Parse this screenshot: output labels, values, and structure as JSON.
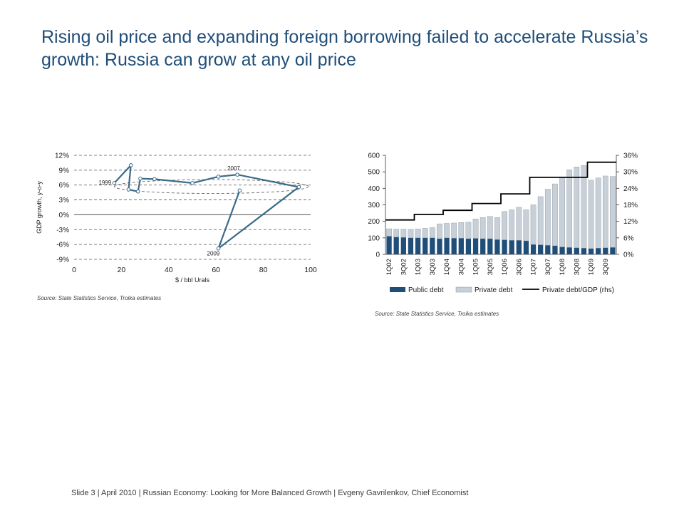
{
  "slide": {
    "title": "Rising oil price and expanding foreign borrowing failed to accelerate Russia’s growth: Russia can grow at any oil price",
    "footer": "Slide 3  | April 2010 | Russian Economy: Looking for More Balanced Growth | Evgeny Gavrilenkov, Chief Economist",
    "title_color": "#1f4e79"
  },
  "chart_data": [
    {
      "type": "scatter",
      "connected": true,
      "xlabel": "$ / bbl Urals",
      "ylabel": "GDP growth, y-o-y",
      "xlim": [
        0,
        100
      ],
      "ylim": [
        -9,
        12
      ],
      "x_ticks": [
        "0",
        "20",
        "40",
        "60",
        "80",
        "100"
      ],
      "y_ticks": [
        "-9%",
        "-6%",
        "-3%",
        "0%",
        "3%",
        "6%",
        "9%",
        "12%"
      ],
      "grid": "horizontal dashed",
      "series": [
        {
          "color": "#3a6b8a",
          "points": [
            {
              "x": 17,
              "y": 6.4
            },
            {
              "x": 24,
              "y": 10.0
            },
            {
              "x": 23,
              "y": 5.1
            },
            {
              "x": 27,
              "y": 4.7
            },
            {
              "x": 28,
              "y": 7.3
            },
            {
              "x": 34,
              "y": 7.2
            },
            {
              "x": 50,
              "y": 6.4
            },
            {
              "x": 61,
              "y": 7.7
            },
            {
              "x": 69,
              "y": 8.1
            },
            {
              "x": 95,
              "y": 5.6
            },
            {
              "x": 61,
              "y": -6.8
            },
            {
              "x": 70,
              "y": 4.9
            }
          ]
        }
      ],
      "annotations": [
        {
          "text": "1999",
          "x": 17,
          "y": 6.4
        },
        {
          "text": "2007",
          "x": 69,
          "y": 8.1
        },
        {
          "text": "2009",
          "x": 61,
          "y": -6.8
        }
      ],
      "ellipse": {
        "cx": 58,
        "cy": 5.7,
        "rx": 41,
        "ry": 1.4
      },
      "source": "Source: State Statistics Service, Troika estimates"
    },
    {
      "type": "bar",
      "stacked": true,
      "categories": [
        "1Q02",
        "2Q02",
        "3Q02",
        "4Q02",
        "1Q03",
        "2Q03",
        "3Q03",
        "4Q03",
        "1Q04",
        "2Q04",
        "3Q04",
        "4Q04",
        "1Q05",
        "2Q05",
        "3Q05",
        "4Q05",
        "1Q06",
        "2Q06",
        "3Q06",
        "4Q06",
        "1Q07",
        "2Q07",
        "3Q07",
        "4Q07",
        "1Q08",
        "2Q08",
        "3Q08",
        "4Q08",
        "1Q09",
        "2Q09",
        "3Q09",
        "4Q09"
      ],
      "tick_labels": [
        "1Q02",
        "3Q02",
        "1Q03",
        "3Q03",
        "1Q04",
        "3Q04",
        "1Q05",
        "3Q05",
        "1Q06",
        "3Q06",
        "1Q07",
        "3Q07",
        "1Q08",
        "3Q08",
        "1Q09",
        "3Q09"
      ],
      "ylim": [
        0,
        600
      ],
      "y_ticks": [
        "0",
        "100",
        "200",
        "300",
        "400",
        "500",
        "600"
      ],
      "y2lim": [
        0,
        36
      ],
      "y2_ticks": [
        "0%",
        "6%",
        "12%",
        "18%",
        "24%",
        "30%",
        "36%"
      ],
      "series": [
        {
          "name": "Public debt",
          "color": "#1f4e79",
          "values": [
            110,
            105,
            103,
            100,
            100,
            100,
            100,
            95,
            100,
            98,
            98,
            95,
            97,
            95,
            95,
            90,
            88,
            85,
            85,
            82,
            60,
            58,
            55,
            52,
            45,
            42,
            40,
            38,
            35,
            38,
            40,
            42
          ]
        },
        {
          "name": "Private debt",
          "color": "#c7d0d8",
          "values": [
            45,
            48,
            50,
            52,
            54,
            58,
            62,
            90,
            88,
            92,
            95,
            100,
            118,
            128,
            135,
            133,
            172,
            185,
            200,
            188,
            240,
            292,
            340,
            375,
            420,
            470,
            490,
            500,
            415,
            425,
            435,
            430
          ]
        },
        {
          "name": "Private debt/GDP (rhs)",
          "color": "#000000",
          "type": "line",
          "axis": "rhs",
          "values": [
            12.5,
            12.5,
            12.5,
            12.5,
            14.5,
            14.5,
            14.5,
            14.5,
            16,
            16,
            16,
            16,
            18.5,
            18.5,
            18.5,
            18.5,
            22,
            22,
            22,
            22,
            28,
            28,
            28,
            28,
            28,
            28,
            28,
            28,
            33.5,
            33.5,
            33.5,
            33.5
          ]
        }
      ],
      "legend": "bottom",
      "source": "Source: State Statistics Service, Troika estimates"
    }
  ]
}
